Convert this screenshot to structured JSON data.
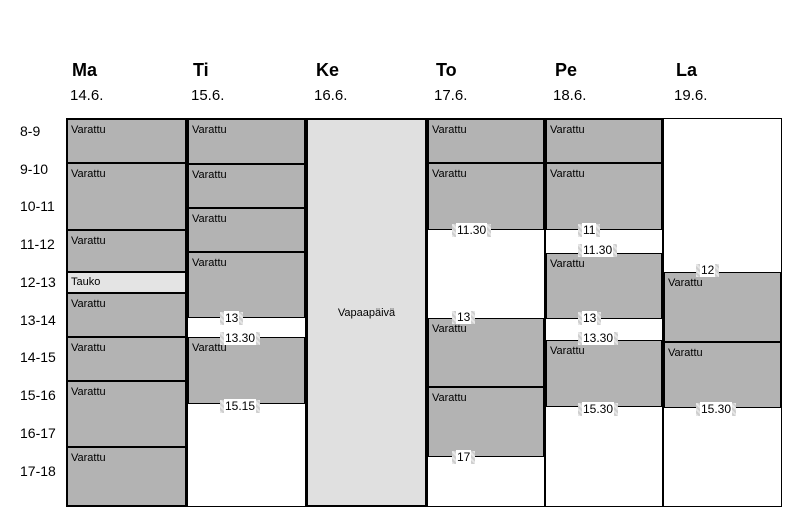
{
  "days": [
    {
      "name": "Ma",
      "date": "14.6."
    },
    {
      "name": "Ti",
      "date": "15.6."
    },
    {
      "name": "Ke",
      "date": "16.6."
    },
    {
      "name": "To",
      "date": "17.6."
    },
    {
      "name": "Pe",
      "date": "18.6."
    },
    {
      "name": "La",
      "date": "19.6."
    }
  ],
  "hours": [
    "8-9",
    "9-10",
    "10-11",
    "11-12",
    "12-13",
    "13-14",
    "14-15",
    "15-16",
    "16-17",
    "17-18"
  ],
  "labels": {
    "booked": "Varattu",
    "break": "Tauko",
    "day_off": "Vapaapäivä"
  },
  "times": {
    "ti_13": "13",
    "ti_13_30": "13.30",
    "ti_15_15": "15.15",
    "to_11_30": "11.30",
    "to_13": "13",
    "to_17": "17",
    "pe_11": "11",
    "pe_11_30": "11.30",
    "pe_13": "13",
    "pe_13_30": "13.30",
    "pe_15_30": "15.30",
    "la_12": "12",
    "la_15_30": "15.30"
  },
  "colors": {
    "booked": "#b3b3b3",
    "day_off": "#e0e0e0",
    "break": "#e4e4e4"
  }
}
